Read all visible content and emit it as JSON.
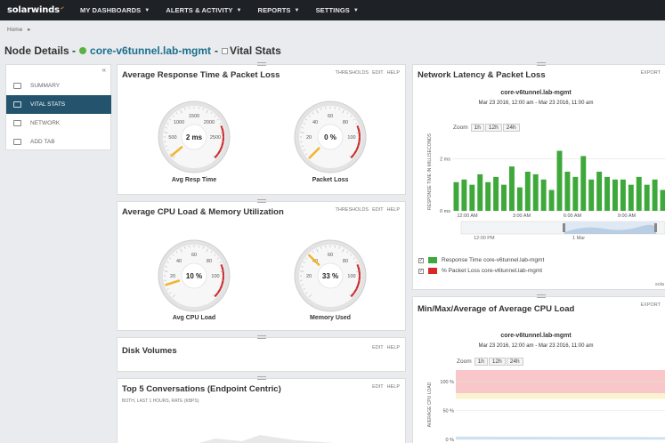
{
  "topnav": {
    "logo": "solarwinds",
    "items": [
      {
        "label": "MY DASHBOARDS"
      },
      {
        "label": "ALERTS & ACTIVITY"
      },
      {
        "label": "REPORTS"
      },
      {
        "label": "SETTINGS"
      }
    ]
  },
  "breadcrumb": {
    "home": "Home",
    "sep": "▸"
  },
  "page": {
    "prefix": "Node Details -",
    "node": "core-v6tunnel.lab-mgmt",
    "dash": "-",
    "view": "Vital Stats"
  },
  "sidebar": {
    "collapse": "«",
    "items": [
      {
        "label": "SUMMARY"
      },
      {
        "label": "VITAL STATS"
      },
      {
        "label": "NETWORK"
      },
      {
        "label": "ADD TAB"
      }
    ]
  },
  "panels": {
    "resp": {
      "title": "Average Response Time & Packet Loss",
      "actions": [
        "THRESHOLDS",
        "EDIT",
        "HELP"
      ],
      "gauges": [
        {
          "label": "Avg Resp Time",
          "value": "2 ms",
          "level": 0.02,
          "ticks": [
            "500",
            "1000",
            "1500",
            "2000",
            "2500"
          ]
        },
        {
          "label": "Packet Loss",
          "value": "0 %",
          "level": 0.0,
          "ticks": [
            "20",
            "40",
            "60",
            "80",
            "100"
          ]
        }
      ]
    },
    "cpu": {
      "title": "Average CPU Load & Memory Utilization",
      "actions": [
        "THRESHOLDS",
        "EDIT",
        "HELP"
      ],
      "gauges": [
        {
          "label": "Avg CPU Load",
          "value": "10 %",
          "level": 0.1,
          "ticks": [
            "20",
            "40",
            "60",
            "80",
            "100"
          ]
        },
        {
          "label": "Memory Used",
          "value": "33 %",
          "level": 0.33,
          "ticks": [
            "20",
            "40",
            "60",
            "80",
            "100"
          ]
        }
      ]
    },
    "disk": {
      "title": "Disk Volumes",
      "actions": [
        "EDIT",
        "HELP"
      ]
    },
    "conv": {
      "title": "Top 5 Conversations (Endpoint Centric)",
      "actions": [
        "EDIT",
        "HELP"
      ],
      "subtitle": "BOTH, LAST 1 HOURS, RATE (KBPS)"
    },
    "latency": {
      "title": "Network Latency & Packet Loss",
      "actions": [
        "EXPORT"
      ],
      "node": "core-v6tunnel.lab-mgmt",
      "range": "Mar 23 2016, 12:00 am - Mar 23 2016, 11:00 am",
      "zoom": {
        "label": "Zoom",
        "options": [
          "1h",
          "12h",
          "24h"
        ]
      },
      "legend": [
        {
          "label": "Response Time core-v6tunnel.lab-mgmt",
          "color": "#3ea83a"
        },
        {
          "label": "% Packet Loss core-v6tunnel.lab-mgmt",
          "color": "#d8282a"
        }
      ],
      "nav_label": "12:00 PM",
      "nav_label2": "1 Mar",
      "footer": "sola"
    },
    "cpuchart": {
      "title": "Min/Max/Average of Average CPU Load",
      "actions": [
        "EXPORT"
      ],
      "node": "core-v6tunnel.lab-mgmt",
      "range": "Mar 23 2016, 12:00 am - Mar 23 2016, 11:00 am",
      "zoom": {
        "label": "Zoom",
        "options": [
          "1h",
          "12h",
          "24h"
        ]
      }
    }
  },
  "chart_data": [
    {
      "type": "bar",
      "ylabel": "RESPONSE TIME IN MILLISECONDS",
      "y_ticks": [
        "2 ms",
        "0 ms"
      ],
      "x_ticks": [
        "12:00 AM",
        "3:00 AM",
        "6:00 AM",
        "9:00 AM"
      ],
      "ylim": [
        0,
        3
      ],
      "series": [
        {
          "name": "Response Time core-v6tunnel.lab-mgmt",
          "values": [
            1.1,
            1.2,
            1.0,
            1.4,
            1.1,
            1.3,
            1.0,
            1.7,
            0.9,
            1.5,
            1.4,
            1.2,
            0.8,
            2.3,
            1.5,
            1.3,
            2.1,
            1.2,
            1.5,
            1.3,
            1.2,
            1.2,
            1.0,
            1.3,
            1.0,
            1.2,
            0.8
          ]
        }
      ]
    },
    {
      "type": "area",
      "ylabel": "AVERAGE CPU LOAD",
      "y_ticks": [
        "100 %",
        "50 %",
        "0 %"
      ],
      "ylim": [
        0,
        120
      ]
    }
  ]
}
